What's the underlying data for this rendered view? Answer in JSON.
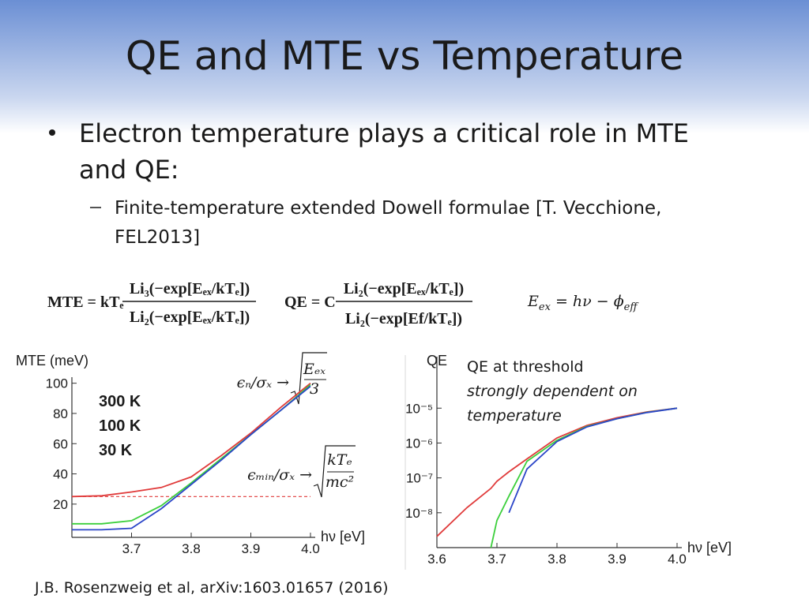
{
  "slide": {
    "title": "QE and MTE vs Temperature",
    "bullets": [
      {
        "lines": [
          "Electron temperature plays a critical role in MTE",
          "and QE:"
        ],
        "sub": [
          {
            "lines": [
              "Finite-temperature extended Dowell formulae [T. Vecchione,",
              "FEL2013]"
            ]
          }
        ]
      }
    ],
    "mte_formula": {
      "lhs": "MTE = kTₑ",
      "numerator": "Li₃(−exp[Eₑₓ/kTₑ])",
      "denominator": "Li₂(−exp[Eₑₓ/kTₑ])"
    },
    "qe_formula": {
      "lhs": "QE = C",
      "numerator": "Li₂(−exp[Eₑₓ/kTₑ])",
      "denominator": "Li₂(−exp[Ef/kTₑ])"
    },
    "eex_formula": {
      "lhs": "E",
      "lhs_sub": "ex",
      "rhs": " = hν − ϕ",
      "rhs_sub": "eff"
    },
    "annotations": {
      "emittance_high": {
        "prefix": "ϵₙ/σₓ →",
        "numerator": "Eₑₓ",
        "denominator": "3"
      },
      "emittance_low": {
        "prefix": "ϵₘᵢₙ/σₓ →",
        "numerator": "kTₑ",
        "denominator": "mc²"
      },
      "qe_note": [
        "QE at threshold",
        "strongly dependent on",
        "temperature"
      ]
    },
    "footer": "J.B. Rosenzweig et al,  arXiv:1603.01657 (2016)"
  },
  "chart_data": [
    {
      "type": "line",
      "y_label": "MTE (meV)",
      "x_label": "hν [eV]",
      "x": [
        3.6,
        3.65,
        3.7,
        3.75,
        3.8,
        3.85,
        3.9,
        3.95,
        4.0
      ],
      "series": [
        {
          "name": "300 K",
          "color": "#e03a3a",
          "values": [
            25,
            25.5,
            28,
            31,
            38,
            52,
            67,
            84,
            100
          ]
        },
        {
          "name": "100 K",
          "color": "#3ccf3c",
          "values": [
            7,
            7,
            9,
            19,
            34,
            50,
            66,
            82,
            99
          ]
        },
        {
          "name": "30 K",
          "color": "#2b45c8",
          "values": [
            3,
            3,
            4,
            17,
            33,
            49,
            66,
            82,
            98
          ]
        }
      ],
      "hline": {
        "value": 25,
        "color": "#e03a3a",
        "style": "dashed"
      },
      "xlim": [
        3.6,
        4.0
      ],
      "ylim": [
        -2,
        104
      ],
      "xticks": [
        3.7,
        3.8,
        3.9,
        {
          "value": 4.0,
          "label": "4.0"
        }
      ],
      "yticks": [
        20,
        40,
        60,
        80,
        100
      ]
    },
    {
      "type": "line",
      "y_label": "QE",
      "x_label": "hν [eV]",
      "yscale": "log",
      "x": [
        3.6,
        3.65,
        3.69,
        3.7,
        3.72,
        3.75,
        3.8,
        3.85,
        3.9,
        3.95,
        4.0
      ],
      "series": [
        {
          "color": "#e03a3a",
          "values": [
            2.1e-09,
            1.4e-08,
            5e-08,
            8e-08,
            1.5e-07,
            3.5e-07,
            1.4e-06,
            3.2e-06,
            5.3e-06,
            7.8e-06,
            1e-05
          ]
        },
        {
          "color": "#3ccf3c",
          "values": [
            null,
            null,
            1e-09,
            6e-09,
            3e-08,
            3e-07,
            1.2e-06,
            3e-06,
            5e-06,
            7.6e-06,
            1e-05
          ]
        },
        {
          "color": "#2b45c8",
          "values": [
            null,
            null,
            null,
            null,
            1e-08,
            1.8e-07,
            1.1e-06,
            2.9e-06,
            5e-06,
            7.5e-06,
            1e-05
          ]
        }
      ],
      "xlim": [
        3.6,
        4.0
      ],
      "ylim": [
        1e-09,
        0.0003
      ],
      "xticks": [
        3.6,
        3.7,
        3.8,
        3.9,
        {
          "value": 4.0,
          "label": "4.0"
        }
      ],
      "yticks": [
        {
          "value": 1e-08,
          "label": "10⁻⁸"
        },
        {
          "value": 1e-07,
          "label": "10⁻⁷"
        },
        {
          "value": 1e-06,
          "label": "10⁻⁶"
        },
        {
          "value": 1e-05,
          "label": "10⁻⁵"
        }
      ]
    }
  ]
}
